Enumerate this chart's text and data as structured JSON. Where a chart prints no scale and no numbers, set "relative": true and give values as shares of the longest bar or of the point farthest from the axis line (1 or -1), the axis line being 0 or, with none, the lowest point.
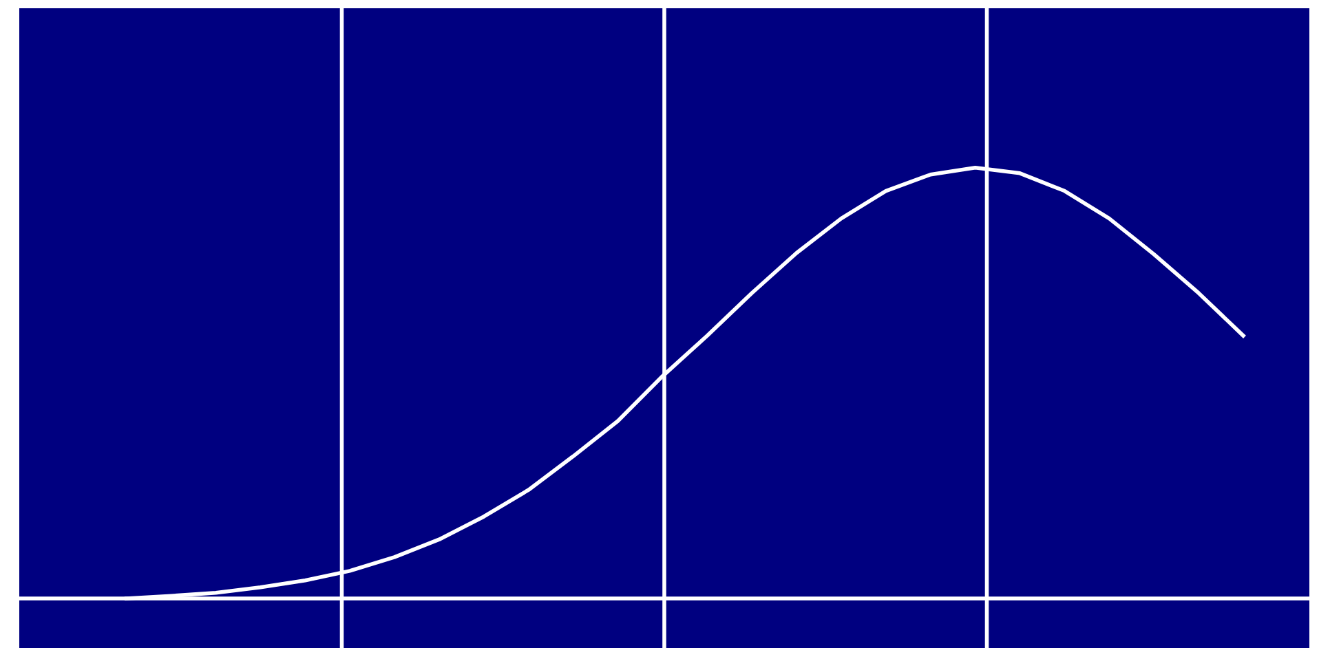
{
  "chart_data": {
    "type": "line",
    "relative": true,
    "grid": "x",
    "marker": "none",
    "line_style": "solid",
    "categories": [
      null,
      null,
      null,
      null,
      null,
      null,
      null,
      null,
      null,
      null,
      null,
      null,
      null,
      null,
      null,
      null,
      null,
      null,
      null,
      null,
      null,
      null,
      null,
      null,
      null,
      null
    ],
    "series": [
      {
        "color": "#ffffff",
        "values": [
          0,
          0.006,
          0.013,
          0.026,
          0.042,
          0.064,
          0.096,
          0.137,
          0.19,
          0.252,
          0.33,
          0.412,
          0.516,
          0.61,
          0.709,
          0.802,
          0.882,
          0.946,
          0.984,
          1,
          0.987,
          0.946,
          0.882,
          0.799,
          0.709,
          0.61
        ]
      }
    ]
  }
}
